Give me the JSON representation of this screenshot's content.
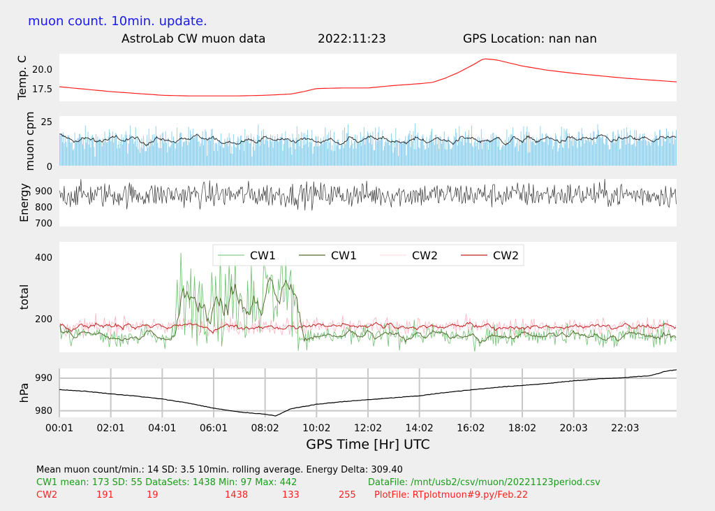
{
  "header": {
    "update_note": "muon count.  10min. update.",
    "title": "AstroLab CW muon data",
    "date": "2022:11:23",
    "gps_location": "GPS Location: nan   nan"
  },
  "footer": {
    "line1": "Mean muon count/min.: 14  SD: 3.5   10min. rolling average.    Energy Delta:  309.40",
    "line2": {
      "label": "CW1 mean: 173    SD: 55   DataSets: 1438   Min: 97   Max: 442",
      "file": "DataFile: /mnt/usb2/csv/muon/20221123period.csv"
    },
    "line3": {
      "name": "CW2",
      "mean": "191",
      "sd": "19",
      "datasets": "1438",
      "min": "133",
      "max": "255",
      "file": "PlotFile: RTplotmuon#9.py/Feb.22"
    }
  },
  "colors": {
    "temp": "#ff2020",
    "muon_bars": "#87ceeb",
    "muon_avg": "#222222",
    "energy": "#333333",
    "cw1_raw": "#6fbf6f",
    "cw1_avg": "#556b2f",
    "cw2_raw": "#ffb6c1",
    "cw2_avg": "#c02020",
    "pressure": "#000000",
    "footer_green": "#1a9c1a",
    "footer_red": "#ff2020",
    "header_blue": "#1a1aee"
  },
  "chart_data": [
    {
      "type": "line",
      "panel": "temperature",
      "ylabel": "Temp. C",
      "yticks": [
        "17.5",
        "20.0"
      ],
      "ylim": [
        15.2,
        23.0
      ],
      "x": [
        0,
        1,
        2,
        3,
        4,
        5,
        6,
        7,
        8,
        9,
        9.5,
        10,
        11,
        12,
        13,
        14,
        14.5,
        15,
        15.5,
        16,
        16.5,
        17,
        18,
        19,
        20,
        21,
        22,
        23,
        24
      ],
      "values": [
        17.6,
        17.2,
        16.8,
        16.5,
        16.2,
        16.1,
        16.1,
        16.1,
        16.2,
        16.4,
        16.8,
        17.3,
        17.4,
        17.4,
        17.8,
        18.1,
        18.3,
        19.0,
        19.9,
        21.0,
        22.2,
        22.0,
        21.0,
        20.3,
        19.8,
        19.4,
        19.0,
        18.7,
        18.4
      ],
      "grid": false
    },
    {
      "type": "bar",
      "panel": "muon_cpm",
      "ylabel": "muon cpm",
      "yticks": [
        "0",
        "25"
      ],
      "ylim": [
        0,
        27
      ],
      "mean": 14,
      "sd": 3.5,
      "rolling_average_label": "10min. rolling average.",
      "samples": 1438,
      "grid": false
    },
    {
      "type": "line",
      "panel": "energy",
      "ylabel": "Energy",
      "yticks": [
        "700",
        "800",
        "900"
      ],
      "ylim": [
        680,
        965
      ],
      "mean": 870,
      "grid": false
    },
    {
      "type": "line",
      "panel": "total",
      "ylabel": "total",
      "yticks": [
        "200",
        "400"
      ],
      "ylim": [
        110,
        450
      ],
      "legend": [
        "CW1",
        "CW1",
        "CW2",
        "CW2"
      ],
      "legend_position": "upper-center",
      "series": [
        {
          "name": "CW1",
          "mean": 173,
          "sd": 55,
          "min": 97,
          "max": 442,
          "burst_x_range": [
            4.5,
            9.3
          ],
          "burst_level": 280,
          "base_level": 160
        },
        {
          "name": "CW2",
          "mean": 191,
          "sd": 19,
          "min": 133,
          "max": 255,
          "base_level": 190
        }
      ],
      "grid": false
    },
    {
      "type": "line",
      "panel": "pressure",
      "ylabel": "hPa",
      "yticks": [
        "980",
        "990"
      ],
      "ylim": [
        978,
        993
      ],
      "x": [
        0,
        1,
        2,
        3,
        4,
        5,
        6,
        7,
        8,
        8.4,
        9,
        10,
        11,
        12,
        13,
        14,
        15,
        16,
        17,
        18,
        19,
        20,
        21,
        22,
        23,
        23.6,
        24
      ],
      "values": [
        986.5,
        986.0,
        985.2,
        984.5,
        983.6,
        982.4,
        980.8,
        979.6,
        979.0,
        978.4,
        980.6,
        982.0,
        982.8,
        983.4,
        984.0,
        984.6,
        985.6,
        986.4,
        987.2,
        987.8,
        988.4,
        989.2,
        989.8,
        990.2,
        990.8,
        992.2,
        992.6
      ],
      "grid": true
    }
  ],
  "x_axis": {
    "label": "GPS Time  [Hr] UTC",
    "ticks": [
      "00:01",
      "02:01",
      "04:01",
      "06:01",
      "08:02",
      "10:02",
      "12:02",
      "14:02",
      "16:02",
      "18:02",
      "20:03",
      "22:03"
    ],
    "tick_hours": [
      0,
      2,
      4,
      6,
      8,
      10,
      12,
      14,
      16,
      18,
      20,
      22
    ],
    "range_hours": [
      0,
      24
    ]
  }
}
